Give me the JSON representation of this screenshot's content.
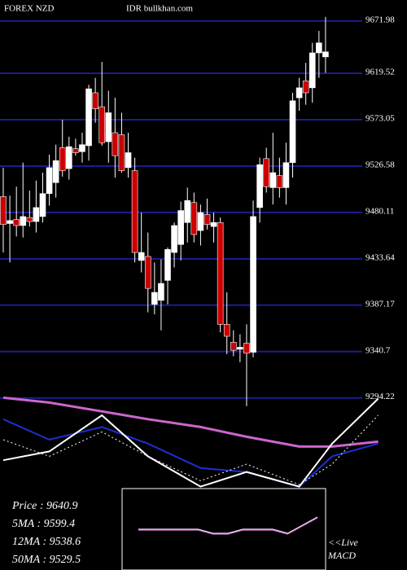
{
  "chart_data": {
    "type": "candlestick",
    "title": "FOREX  NZD",
    "subtitle": "IDR bullkhan.com",
    "ylim": [
      9285,
      9693
    ],
    "yticks": [
      9294.22,
      9340.7,
      9387.17,
      9433.64,
      9480.11,
      9526.58,
      9573.05,
      9619.52,
      9671.98
    ],
    "grid": true,
    "grid_color": "#1c1c96",
    "up_color": "#ffffff",
    "down_color": "#cc0000",
    "open": [
      9496,
      9469,
      9473,
      9467,
      9475,
      9471,
      9476,
      9499,
      9510,
      9545,
      9524,
      9544,
      9541,
      9547,
      9600,
      9586,
      9551,
      9560,
      9558,
      9525,
      9522,
      9432,
      9436,
      9388,
      9392,
      9412,
      9440,
      9448,
      9470,
      9490,
      9462,
      9478,
      9466,
      9470,
      9368,
      9350,
      9343,
      9349,
      9340,
      9485,
      9534,
      9505,
      9517,
      9505,
      9530,
      9595,
      9612,
      9605,
      9640,
      9636
    ],
    "high": [
      9525,
      9497,
      9506,
      9530,
      9502,
      9512,
      9520,
      9538,
      9548,
      9573,
      9556,
      9554,
      9560,
      9608,
      9615,
      9631,
      9602,
      9595,
      9580,
      9560,
      9535,
      9480,
      9460,
      9430,
      9433,
      9445,
      9470,
      9491,
      9505,
      9500,
      9488,
      9494,
      9480,
      9475,
      9400,
      9362,
      9358,
      9368,
      9492,
      9535,
      9545,
      9560,
      9535,
      9550,
      9600,
      9615,
      9630,
      9650,
      9662,
      9676
    ],
    "low": [
      9440,
      9430,
      9456,
      9455,
      9466,
      9460,
      9470,
      9487,
      9495,
      9516,
      9513,
      9537,
      9530,
      9532,
      9570,
      9547,
      9530,
      9515,
      9520,
      9515,
      9430,
      9420,
      9380,
      9378,
      9362,
      9388,
      9425,
      9432,
      9450,
      9450,
      9447,
      9463,
      9450,
      9360,
      9338,
      9336,
      9330,
      9286,
      9335,
      9470,
      9500,
      9488,
      9495,
      9488,
      9515,
      9582,
      9588,
      9590,
      9615,
      9620
    ],
    "close": [
      9468,
      9472,
      9467,
      9476,
      9471,
      9485,
      9499,
      9525,
      9532,
      9522,
      9546,
      9540,
      9548,
      9604,
      9584,
      9550,
      9580,
      9537,
      9522,
      9540,
      9440,
      9440,
      9404,
      9400,
      9409,
      9443,
      9467,
      9482,
      9492,
      9458,
      9480,
      9468,
      9470,
      9368,
      9356,
      9342,
      9345,
      9339,
      9476,
      9528,
      9506,
      9520,
      9505,
      9530,
      9592,
      9605,
      9600,
      9640,
      9650,
      9641
    ],
    "ma_panel": {
      "ylim": [
        0,
        100
      ],
      "x": [
        0,
        7,
        15,
        22,
        30,
        37,
        45,
        50,
        57
      ],
      "series": [
        {
          "name": "50MA",
          "color": "#cc66cc",
          "width": 3,
          "values": [
            93,
            88,
            79,
            71,
            63,
            53,
            43,
            43,
            48
          ]
        },
        {
          "name": "12MA",
          "color": "#1f2fd0",
          "width": 2,
          "values": [
            71,
            50,
            63,
            46,
            21,
            17,
            2,
            33,
            46
          ]
        },
        {
          "name": "5MA",
          "color": "#ffffff",
          "width": 2,
          "values": [
            29,
            38,
            75,
            33,
            2,
            17,
            2,
            46,
            92
          ]
        },
        {
          "name": "Price",
          "color": "#ffffff",
          "width": 1,
          "dash": true,
          "values": [
            50,
            33,
            58,
            33,
            8,
            25,
            4,
            25,
            75
          ]
        }
      ]
    },
    "macd_panel": {
      "ylim": [
        -10,
        10
      ],
      "values": [
        0,
        0,
        0,
        0,
        0,
        -1,
        -1,
        0,
        0,
        0,
        -1,
        1,
        3
      ],
      "colors": [
        "#ffffff",
        "#cc66cc"
      ]
    },
    "info": [
      "Price   :  9640.9",
      "5MA : 9599.4",
      "12MA : 9538.6",
      "50MA : 9529.5"
    ],
    "live_label": [
      "<<Live",
      "MACD"
    ]
  }
}
